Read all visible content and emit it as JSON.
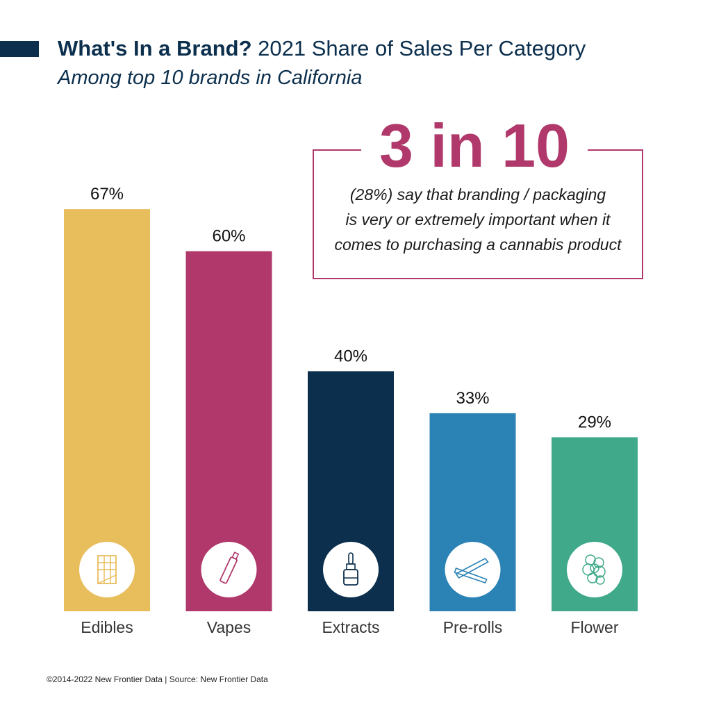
{
  "header": {
    "title_bold": "What's In a Brand?",
    "title_rest": "2021 Share of Sales Per Category",
    "subtitle": "Among top 10 brands in California"
  },
  "callout": {
    "headline": "3 in 10",
    "line1": "(28%) say that branding / packaging",
    "line2": "is very or extremely important when it",
    "line3": "comes to purchasing a cannabis product",
    "color": "#b0386a"
  },
  "footer": {
    "text": "©2014-2022 New Frontier Data | Source: New Frontier Data"
  },
  "chart_data": {
    "type": "bar",
    "categories": [
      "Edibles",
      "Vapes",
      "Extracts",
      "Pre-rolls",
      "Flower"
    ],
    "values": [
      67,
      60,
      40,
      33,
      29
    ],
    "value_labels": [
      "67%",
      "60%",
      "40%",
      "33%",
      "29%"
    ],
    "colors": [
      "#e8bd5c",
      "#b0386a",
      "#0b2f4d",
      "#2a82b5",
      "#3fa98a"
    ],
    "icons": [
      "chocolate-bar-icon",
      "vape-pen-icon",
      "dropper-bottle-icon",
      "pre-roll-icon",
      "flower-bud-icon"
    ],
    "unit": "%",
    "ylim": [
      0,
      100
    ],
    "grid": false
  }
}
